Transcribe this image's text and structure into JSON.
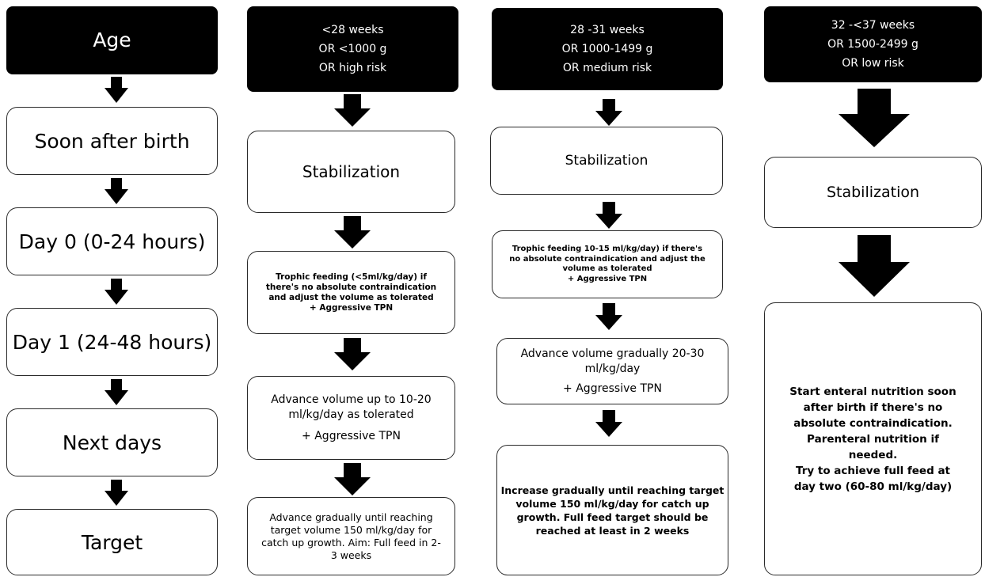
{
  "col1": {
    "header": "Age",
    "steps": [
      "Soon after birth",
      "Day 0 (0-24 hours)",
      "Day 1 (24-48 hours)",
      "Next days",
      "Target"
    ]
  },
  "col2": {
    "header": [
      "<28 weeks",
      "OR <1000 g",
      "OR high risk"
    ],
    "stabilization": "Stabilization",
    "trophic": [
      "Trophic feeding (<5ml/kg/day) if",
      "there's no absolute contraindication",
      "and adjust the volume as tolerated",
      "+ Aggressive TPN"
    ],
    "advance": [
      "Advance volume up to 10-20",
      "ml/kg/day as tolerated",
      "+ Aggressive TPN"
    ],
    "target": [
      "Advance gradually until reaching",
      "target volume 150 ml/kg/day for",
      "catch up growth. Aim: Full feed in 2-",
      "3 weeks"
    ]
  },
  "col3": {
    "header": [
      "28 -31 weeks",
      "OR 1000-1499 g",
      "OR medium risk"
    ],
    "stabilization": "Stabilization",
    "trophic": [
      "Trophic feeding 10-15 ml/kg/day) if there's",
      "no absolute contraindication and adjust the",
      "volume as tolerated",
      "+ Aggressive TPN"
    ],
    "advance": [
      "Advance volume gradually 20-30",
      "ml/kg/day",
      "+ Aggressive TPN"
    ],
    "target": [
      "Increase gradually until reaching target",
      "volume 150 ml/kg/day for catch up",
      "growth. Full feed target should be",
      "reached  at least in 2 weeks"
    ]
  },
  "col4": {
    "header": [
      "32 -<37 weeks",
      "OR 1500-2499 g",
      "OR low risk"
    ],
    "stabilization": "Stabilization",
    "note": [
      "Start enteral nutrition soon",
      "after birth if there's no",
      "absolute contraindication.",
      "Parenteral nutrition if",
      "needed.",
      "Try to achieve full feed at",
      "day two (60-80 ml/kg/day)"
    ]
  }
}
